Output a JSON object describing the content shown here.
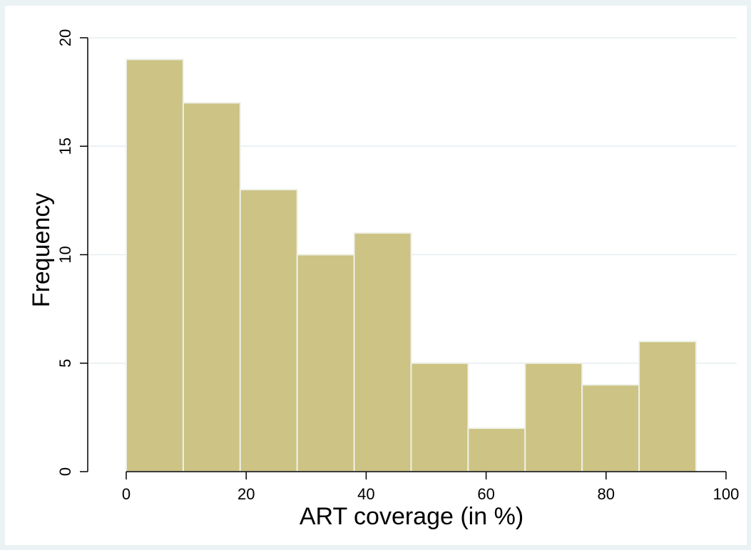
{
  "chart_data": {
    "type": "bar",
    "subtype": "histogram",
    "bins": [
      {
        "start": 0.0,
        "end": 9.5,
        "count": 19
      },
      {
        "start": 9.5,
        "end": 19.0,
        "count": 17
      },
      {
        "start": 19.0,
        "end": 28.5,
        "count": 13
      },
      {
        "start": 28.5,
        "end": 38.0,
        "count": 10
      },
      {
        "start": 38.0,
        "end": 47.5,
        "count": 11
      },
      {
        "start": 47.5,
        "end": 57.0,
        "count": 5
      },
      {
        "start": 57.0,
        "end": 66.5,
        "count": 2
      },
      {
        "start": 66.5,
        "end": 76.0,
        "count": 5
      },
      {
        "start": 76.0,
        "end": 85.5,
        "count": 4
      },
      {
        "start": 85.5,
        "end": 95.0,
        "count": 6
      }
    ],
    "xlabel": "ART coverage (in %)",
    "ylabel": "Frequency",
    "xlim": [
      0,
      100
    ],
    "ylim": [
      0,
      20
    ],
    "xticks": [
      0,
      20,
      40,
      60,
      80,
      100
    ],
    "yticks": [
      0,
      5,
      10,
      15,
      20
    ],
    "grid": true,
    "bar_fill": "#ccc384",
    "bar_edge": "#eef0e6"
  },
  "colors": {
    "outer_background": "#eaf2f3",
    "plot_background": "#ffffff",
    "grid": "#e6eef0",
    "axis": "#000000"
  }
}
